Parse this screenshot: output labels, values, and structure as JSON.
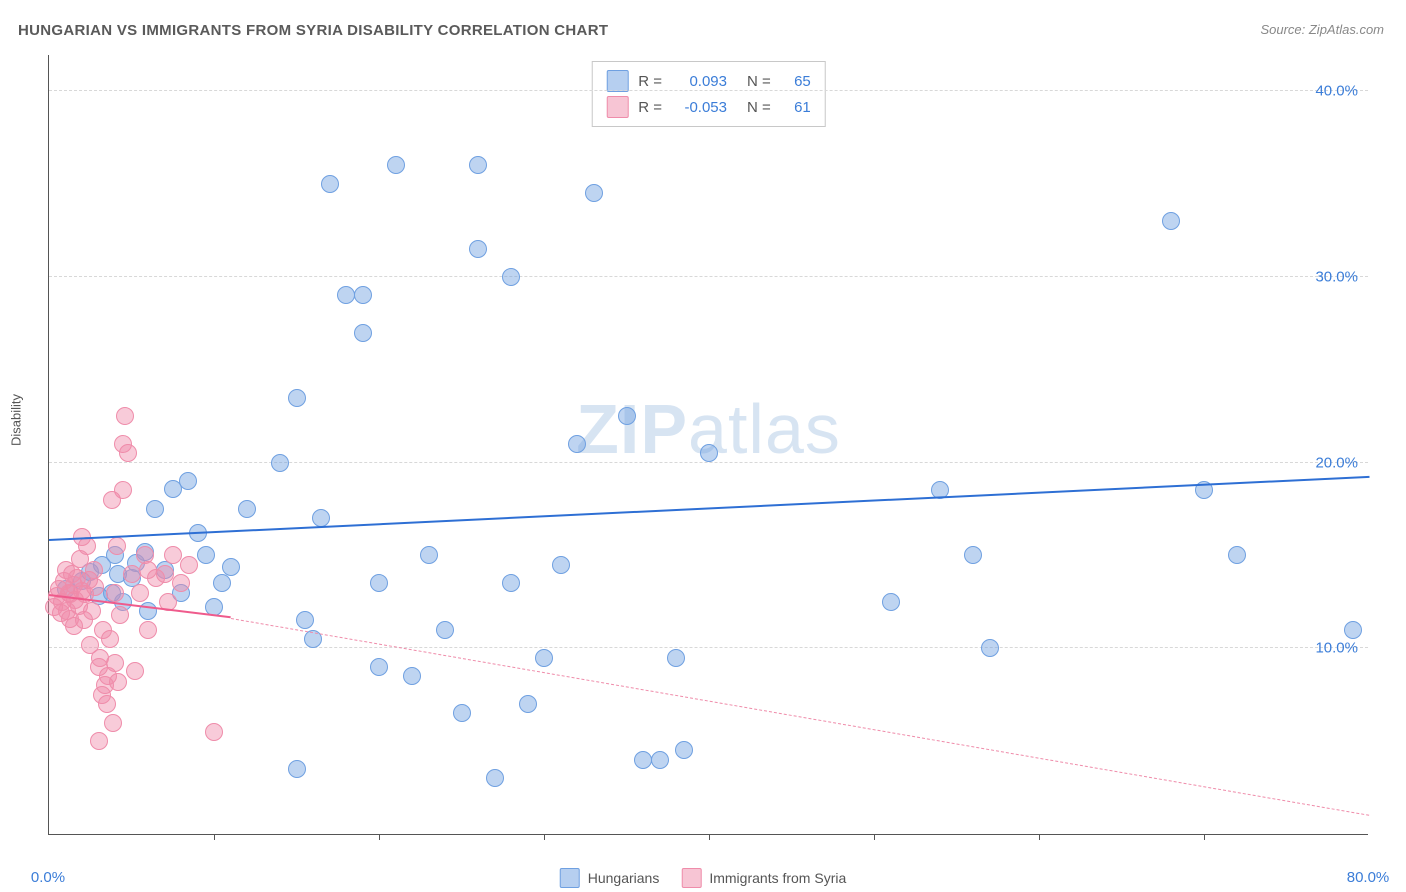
{
  "title": "HUNGARIAN VS IMMIGRANTS FROM SYRIA DISABILITY CORRELATION CHART",
  "source": "Source: ZipAtlas.com",
  "y_axis_label": "Disability",
  "watermark": {
    "bold": "ZIP",
    "rest": "atlas"
  },
  "chart": {
    "type": "scatter",
    "xlim": [
      0,
      80
    ],
    "ylim": [
      0,
      42
    ],
    "x_ticks_label": [
      {
        "v": 0,
        "label": "0.0%"
      },
      {
        "v": 80,
        "label": "80.0%"
      }
    ],
    "x_ticks_minor": [
      10,
      20,
      30,
      40,
      50,
      60,
      70
    ],
    "y_ticks": [
      {
        "v": 10,
        "label": "10.0%"
      },
      {
        "v": 20,
        "label": "20.0%"
      },
      {
        "v": 30,
        "label": "30.0%"
      },
      {
        "v": 40,
        "label": "40.0%"
      }
    ],
    "grid_color": "#d8d8d8",
    "background_color": "#ffffff",
    "marker_radius": 9,
    "series": [
      {
        "name": "Hungarians",
        "fill": "rgba(110,160,225,0.45)",
        "stroke": "#6fa0e1",
        "trend": {
          "x1": 0,
          "y1": 15.8,
          "x2": 80,
          "y2": 19.2,
          "color": "#2e6fd4",
          "width": 2.5,
          "dash": "none"
        },
        "r": "0.093",
        "n": "65",
        "points": [
          [
            1,
            13.2
          ],
          [
            2,
            13.6
          ],
          [
            2.5,
            14.1
          ],
          [
            3,
            12.8
          ],
          [
            3.2,
            14.5
          ],
          [
            3.8,
            13.0
          ],
          [
            4,
            15.0
          ],
          [
            4.2,
            14.0
          ],
          [
            4.5,
            12.5
          ],
          [
            5,
            13.8
          ],
          [
            5.3,
            14.6
          ],
          [
            5.8,
            15.2
          ],
          [
            6,
            12.0
          ],
          [
            6.4,
            17.5
          ],
          [
            7,
            14.2
          ],
          [
            7.5,
            18.6
          ],
          [
            8,
            13.0
          ],
          [
            8.4,
            19.0
          ],
          [
            9,
            16.2
          ],
          [
            9.5,
            15.0
          ],
          [
            10,
            12.2
          ],
          [
            10.5,
            13.5
          ],
          [
            11,
            14.4
          ],
          [
            12,
            17.5
          ],
          [
            14,
            20.0
          ],
          [
            15,
            23.5
          ],
          [
            15,
            3.5
          ],
          [
            15.5,
            11.5
          ],
          [
            16,
            10.5
          ],
          [
            16.5,
            17.0
          ],
          [
            17,
            35.0
          ],
          [
            18,
            29.0
          ],
          [
            19,
            29.0
          ],
          [
            19,
            27.0
          ],
          [
            20,
            13.5
          ],
          [
            20,
            9.0
          ],
          [
            21,
            36.0
          ],
          [
            22,
            8.5
          ],
          [
            23,
            15.0
          ],
          [
            24,
            11.0
          ],
          [
            25,
            6.5
          ],
          [
            26,
            36.0
          ],
          [
            26,
            31.5
          ],
          [
            27,
            3.0
          ],
          [
            28,
            30.0
          ],
          [
            28,
            13.5
          ],
          [
            29,
            7.0
          ],
          [
            30,
            9.5
          ],
          [
            31,
            14.5
          ],
          [
            32,
            21.0
          ],
          [
            33,
            34.5
          ],
          [
            35,
            22.5
          ],
          [
            36,
            4.0
          ],
          [
            37,
            4.0
          ],
          [
            38,
            9.5
          ],
          [
            38.5,
            4.5
          ],
          [
            40,
            20.5
          ],
          [
            51,
            12.5
          ],
          [
            54,
            18.5
          ],
          [
            56,
            15.0
          ],
          [
            57,
            10.0
          ],
          [
            68,
            33.0
          ],
          [
            70,
            18.5
          ],
          [
            72,
            15.0
          ],
          [
            79,
            11.0
          ]
        ]
      },
      {
        "name": "Immigrants from Syria",
        "fill": "rgba(240,140,170,0.45)",
        "stroke": "#ef8caa",
        "trend_solid": {
          "x1": 0,
          "y1": 12.8,
          "x2": 11,
          "y2": 11.6,
          "color": "#ef5b8c",
          "width": 2,
          "dash": "none"
        },
        "trend_dash": {
          "x1": 11,
          "y1": 11.6,
          "x2": 80,
          "y2": 1.0,
          "color": "#ef8caa",
          "width": 1.2,
          "dash": "5,5"
        },
        "r": "-0.053",
        "n": "61",
        "points": [
          [
            0.3,
            12.2
          ],
          [
            0.5,
            12.8
          ],
          [
            0.6,
            13.2
          ],
          [
            0.7,
            11.9
          ],
          [
            0.8,
            12.5
          ],
          [
            0.9,
            13.6
          ],
          [
            1.0,
            14.2
          ],
          [
            1.1,
            12.0
          ],
          [
            1.2,
            13.0
          ],
          [
            1.3,
            11.6
          ],
          [
            1.3,
            12.9
          ],
          [
            1.4,
            14.0
          ],
          [
            1.5,
            13.4
          ],
          [
            1.5,
            11.2
          ],
          [
            1.6,
            12.6
          ],
          [
            1.7,
            13.8
          ],
          [
            1.8,
            12.3
          ],
          [
            1.9,
            14.8
          ],
          [
            2.0,
            13.1
          ],
          [
            2.0,
            16.0
          ],
          [
            2.1,
            11.5
          ],
          [
            2.2,
            12.9
          ],
          [
            2.3,
            15.5
          ],
          [
            2.4,
            13.7
          ],
          [
            2.5,
            10.2
          ],
          [
            2.6,
            12.0
          ],
          [
            2.7,
            14.2
          ],
          [
            2.8,
            13.3
          ],
          [
            3.0,
            9.0
          ],
          [
            3.0,
            5.0
          ],
          [
            3.1,
            9.5
          ],
          [
            3.2,
            7.5
          ],
          [
            3.3,
            11.0
          ],
          [
            3.4,
            8.0
          ],
          [
            3.5,
            7.0
          ],
          [
            3.6,
            8.5
          ],
          [
            3.7,
            10.5
          ],
          [
            3.8,
            18.0
          ],
          [
            3.9,
            6.0
          ],
          [
            4.0,
            9.2
          ],
          [
            4.0,
            13.0
          ],
          [
            4.1,
            15.5
          ],
          [
            4.2,
            8.2
          ],
          [
            4.3,
            11.8
          ],
          [
            4.5,
            18.5
          ],
          [
            4.5,
            21.0
          ],
          [
            4.6,
            22.5
          ],
          [
            4.8,
            20.5
          ],
          [
            5.0,
            14.0
          ],
          [
            5.2,
            8.8
          ],
          [
            5.5,
            13.0
          ],
          [
            5.8,
            15.0
          ],
          [
            6.0,
            14.2
          ],
          [
            6.0,
            11.0
          ],
          [
            6.5,
            13.8
          ],
          [
            7.0,
            14.0
          ],
          [
            7.2,
            12.5
          ],
          [
            7.5,
            15.0
          ],
          [
            8.0,
            13.5
          ],
          [
            8.5,
            14.5
          ],
          [
            10.0,
            5.5
          ]
        ]
      }
    ],
    "legend_series": {
      "swatch_blue": {
        "fill": "rgba(110,160,225,0.5)",
        "border": "#6fa0e1"
      },
      "swatch_pink": {
        "fill": "rgba(240,140,170,0.5)",
        "border": "#ef8caa"
      }
    },
    "legend_labels": {
      "r": "R =",
      "n": "N =",
      "hungarians": "Hungarians",
      "syria": "Immigrants from Syria"
    }
  }
}
